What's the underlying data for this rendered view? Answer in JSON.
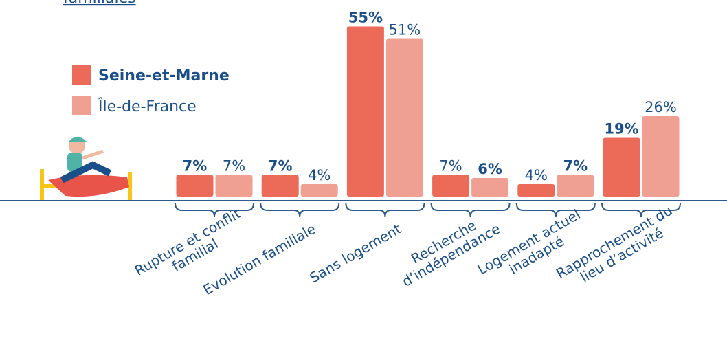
{
  "chart_data": {
    "type": "bar",
    "title": "familiales",
    "categories": [
      [
        "Rupture et conflit",
        "familial"
      ],
      [
        "Evolution familiale"
      ],
      [
        "Sans logement"
      ],
      [
        "Recherche",
        "d’indépendance"
      ],
      [
        "Logement actuel",
        "inadapté"
      ],
      [
        "Rapprochement du",
        "lieu d’activité"
      ]
    ],
    "series": [
      {
        "name": "Seine-et-Marne",
        "color": "#ec6a58",
        "values": [
          7,
          7,
          55,
          7,
          4,
          19
        ],
        "value_labels": [
          "7%",
          "7%",
          "55%",
          "7%",
          "4%",
          "19%"
        ],
        "bold": [
          true,
          true,
          true,
          false,
          false,
          true
        ]
      },
      {
        "name": "Île-de-France",
        "color": "#efa093",
        "values": [
          7,
          4,
          51,
          6,
          7,
          26
        ],
        "value_labels": [
          "7%",
          "4%",
          "51%",
          "6%",
          "7%",
          "26%"
        ],
        "bold": [
          false,
          false,
          false,
          true,
          true,
          false
        ]
      }
    ],
    "ylim": [
      0,
      60
    ]
  }
}
